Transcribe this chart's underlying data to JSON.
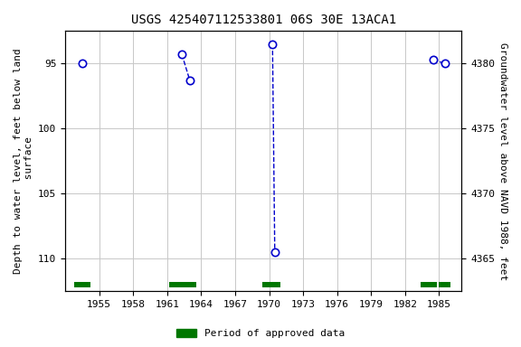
{
  "title": "USGS 425407112533801 06S 30E 13ACA1",
  "ylabel_left": "Depth to water level, feet below land\n surface",
  "ylabel_right": "Groundwater level above NAVD 1988, feet",
  "ylim_left": [
    112.5,
    92.5
  ],
  "ylim_right": [
    4362.5,
    4382.5
  ],
  "xlim": [
    1952,
    1987
  ],
  "xticks": [
    1955,
    1958,
    1961,
    1964,
    1967,
    1970,
    1973,
    1976,
    1979,
    1982,
    1985
  ],
  "yticks_left": [
    95,
    100,
    105,
    110
  ],
  "yticks_right": [
    4380,
    4375,
    4370,
    4365
  ],
  "points_x": [
    1953.5,
    1962.3,
    1963.0,
    1970.3,
    1970.5,
    1984.5,
    1985.5
  ],
  "points_y": [
    95.0,
    94.3,
    96.3,
    93.5,
    109.5,
    94.7,
    95.0
  ],
  "segments": [
    {
      "x": [
        1962.3,
        1963.0
      ],
      "y": [
        94.3,
        96.3
      ]
    },
    {
      "x": [
        1970.3,
        1970.5
      ],
      "y": [
        93.5,
        109.5
      ]
    },
    {
      "x": [
        1984.5,
        1985.5
      ],
      "y": [
        94.7,
        95.0
      ]
    }
  ],
  "approved_periods": [
    [
      1952.8,
      1954.2
    ],
    [
      1961.2,
      1963.6
    ],
    [
      1969.4,
      1971.0
    ],
    [
      1983.4,
      1984.8
    ],
    [
      1985.0,
      1986.0
    ]
  ],
  "approved_bar_y": 112.0,
  "approved_bar_height": 0.4,
  "line_color": "#0000cc",
  "marker_color": "#0000cc",
  "approved_color": "#007700",
  "background_color": "#ffffff",
  "grid_color": "#c8c8c8",
  "title_fontsize": 10,
  "label_fontsize": 8,
  "tick_fontsize": 8,
  "legend_fontsize": 8
}
